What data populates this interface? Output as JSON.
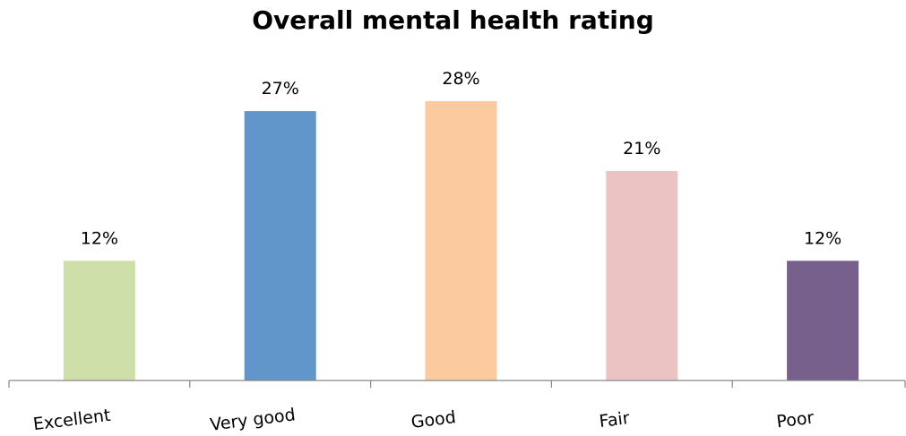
{
  "chart_data": {
    "type": "bar",
    "title": "Overall mental health rating",
    "xlabel": "",
    "ylabel": "",
    "categories": [
      "Excellent",
      "Very good",
      "Good",
      "Fair",
      "Poor"
    ],
    "values": [
      12,
      27,
      28,
      21,
      12
    ],
    "value_labels": [
      "12%",
      "27%",
      "28%",
      "21%",
      "12%"
    ],
    "bar_colors": [
      "#cfdfaa",
      "#6096c9",
      "#fbca9f",
      "#ecc3c3",
      "#77618c"
    ],
    "ylim": [
      0,
      30
    ],
    "grid": false,
    "legend": "none",
    "category_label_rotation_deg": -7
  }
}
